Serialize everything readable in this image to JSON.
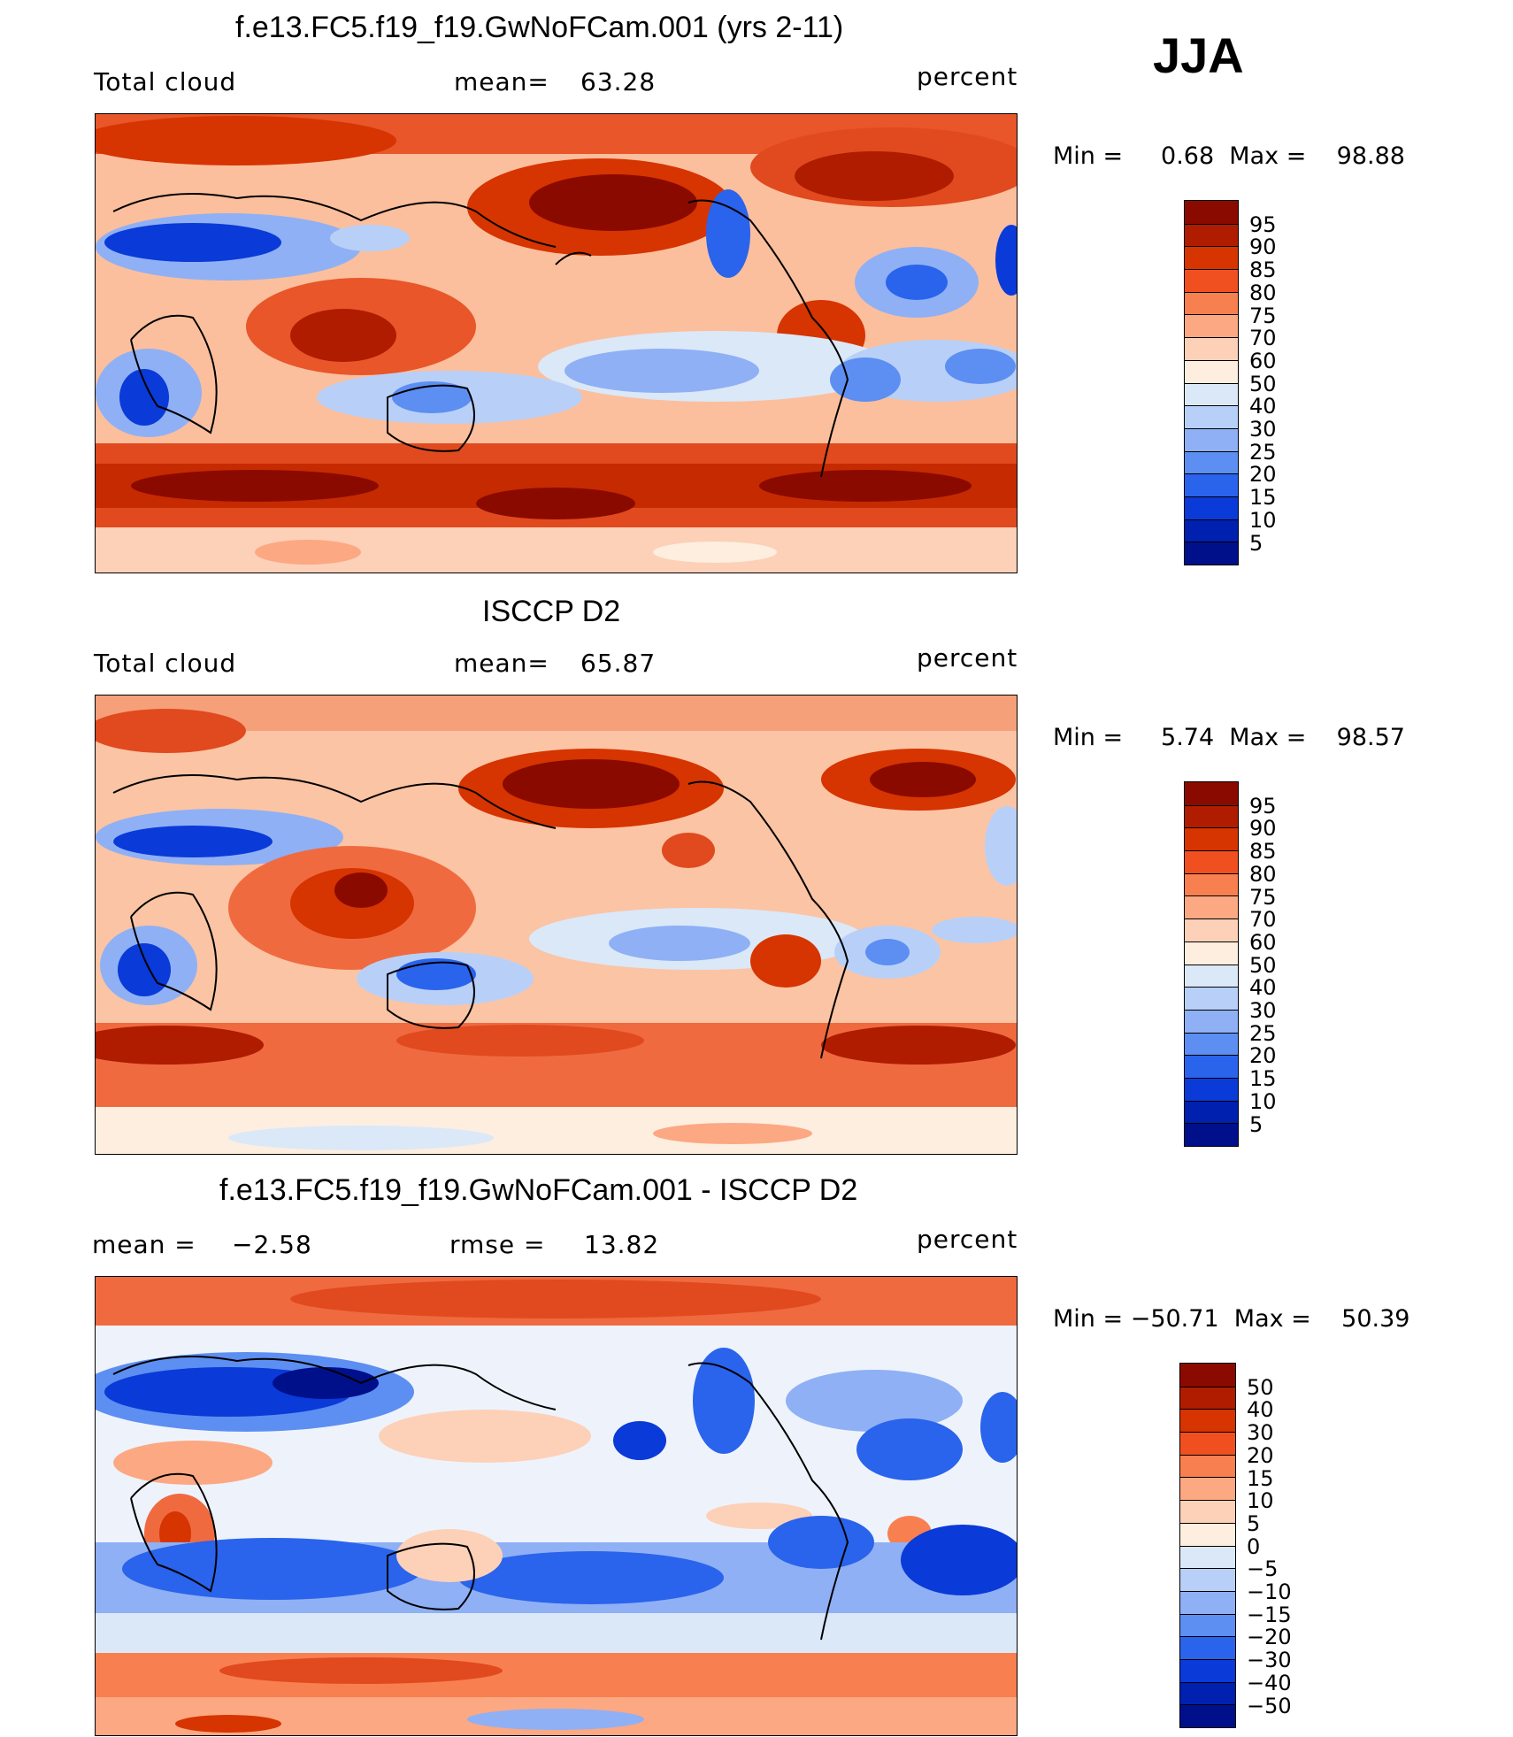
{
  "season": "JJA",
  "units": "percent",
  "panels": [
    {
      "title": "f.e13.FC5.f19_f19.GwNoFCam.001 (yrs 2-11)",
      "left_label": "Total cloud",
      "stat_label": "mean=",
      "stat_value": "63.28",
      "range_text": "Min =     0.68  Max =    98.88",
      "min": 0.68,
      "max": 98.88
    },
    {
      "title": "ISCCP D2",
      "left_label": "Total cloud",
      "stat_label": "mean=",
      "stat_value": "65.87",
      "range_text": "Min =     5.74  Max =    98.57",
      "min": 5.74,
      "max": 98.57
    },
    {
      "title": "f.e13.FC5.f19_f19.GwNoFCam.001 - ISCCP D2",
      "left_label": "mean =",
      "left_value": "−2.58",
      "stat_label": "rmse =",
      "stat_value": "13.82",
      "range_text": "Min = −50.71  Max =    50.39",
      "min": -50.71,
      "max": 50.39
    }
  ],
  "colorbar_abs": {
    "labels": [
      "95",
      "90",
      "85",
      "80",
      "75",
      "70",
      "60",
      "50",
      "40",
      "30",
      "25",
      "20",
      "15",
      "10",
      "5"
    ],
    "colors": [
      "#8b0a00",
      "#b01c00",
      "#d63400",
      "#f05020",
      "#f88050",
      "#fca883",
      "#fdd0b8",
      "#fdeee0",
      "#dbe8f8",
      "#b8d0f8",
      "#8fb0f5",
      "#5d8ef2",
      "#2a63ec",
      "#0a3ad8",
      "#0020b0",
      "#00108a"
    ]
  },
  "colorbar_diff": {
    "labels": [
      "50",
      "40",
      "30",
      "20",
      "15",
      "10",
      "5",
      "0",
      "−5",
      "−10",
      "−15",
      "−20",
      "−30",
      "−40",
      "−50"
    ],
    "colors": [
      "#8b0a00",
      "#b01c00",
      "#d63400",
      "#f05020",
      "#f88050",
      "#fca883",
      "#fdd0b8",
      "#fdeee0",
      "#dbe8f8",
      "#b8d0f8",
      "#8fb0f5",
      "#5d8ef2",
      "#2a63ec",
      "#0a3ad8",
      "#0020b0",
      "#00108a"
    ]
  }
}
